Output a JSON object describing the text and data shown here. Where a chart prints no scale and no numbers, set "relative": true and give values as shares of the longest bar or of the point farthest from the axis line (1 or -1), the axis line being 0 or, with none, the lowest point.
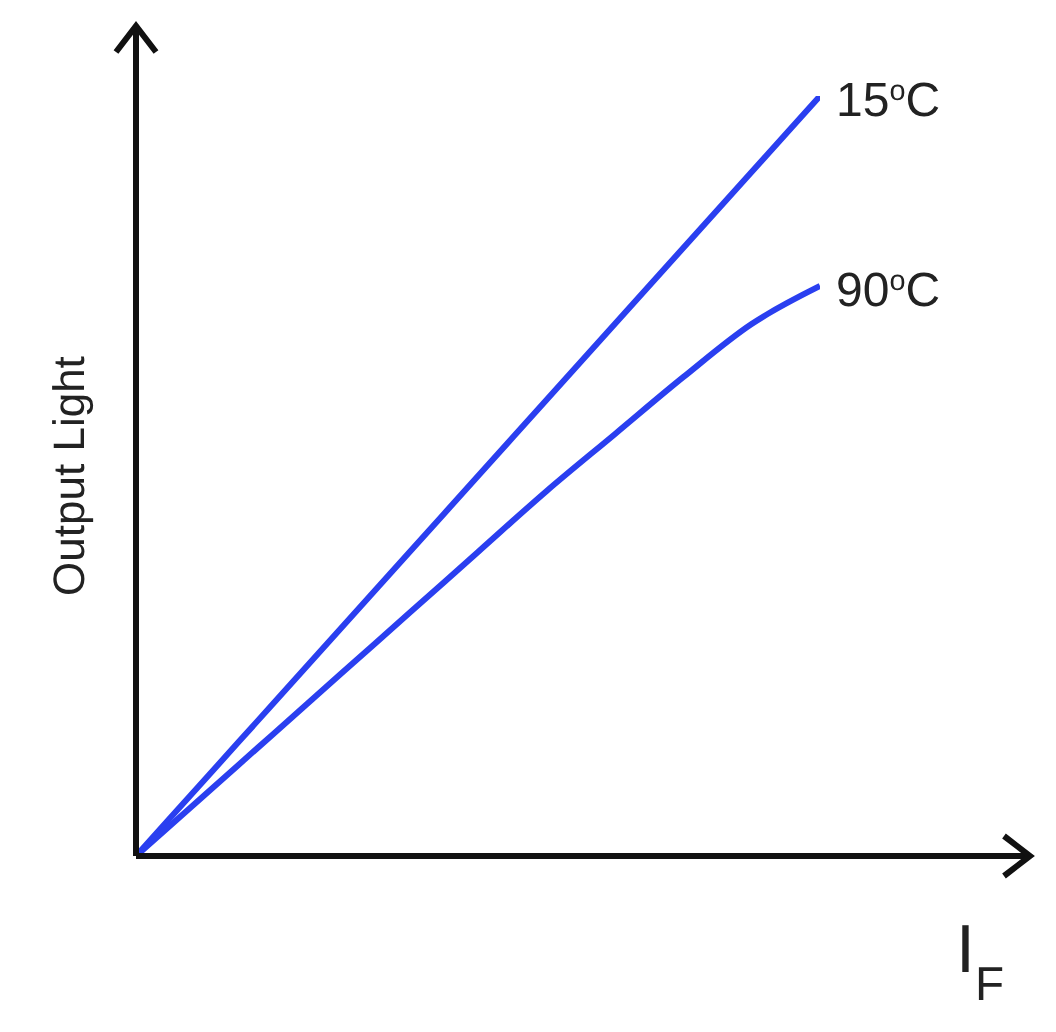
{
  "chart_data": {
    "type": "line",
    "relative": true,
    "xlabel": "I$_{F}$",
    "ylabel": "Output Light",
    "categories": [
      null,
      null,
      null,
      null,
      null,
      null,
      null,
      null,
      null,
      null,
      null
    ],
    "series": [
      {
        "name": "15$^{o}$C",
        "color": "#2a3ff0",
        "values": [
          0,
          0.1,
          0.2,
          0.3,
          0.4,
          0.5,
          0.6,
          0.7,
          0.8,
          0.9,
          1
        ]
      },
      {
        "name": "90$^{o}$C",
        "color": "#2a3ff0",
        "values": [
          0,
          0.08,
          0.16,
          0.24,
          0.32,
          0.4,
          0.48,
          0.555,
          0.63,
          0.7,
          0.75
        ]
      }
    ]
  }
}
